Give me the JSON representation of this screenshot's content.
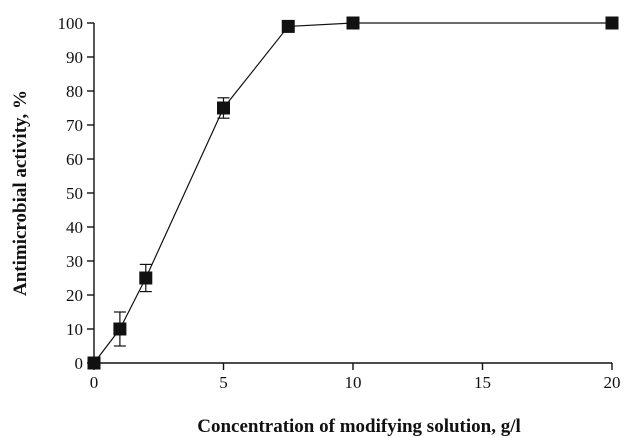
{
  "chart_data": {
    "type": "line",
    "title": "",
    "xlabel": "Concentration of modifying solution, g/l",
    "ylabel": "Antimicrobial activity, %",
    "xlim": [
      0,
      20
    ],
    "ylim": [
      0,
      100
    ],
    "xticks": [
      0,
      5,
      10,
      15,
      20
    ],
    "yticks": [
      0,
      10,
      20,
      30,
      40,
      50,
      60,
      70,
      80,
      90,
      100
    ],
    "grid": false,
    "legend": "none",
    "marker": "square",
    "color": "#111111",
    "series": [
      {
        "x": [
          0,
          1,
          2,
          5,
          7.5,
          10,
          20
        ],
        "y": [
          0,
          10,
          25,
          75,
          99,
          100,
          100
        ],
        "error": [
          0,
          5,
          4,
          3,
          0,
          0,
          0
        ]
      }
    ]
  }
}
